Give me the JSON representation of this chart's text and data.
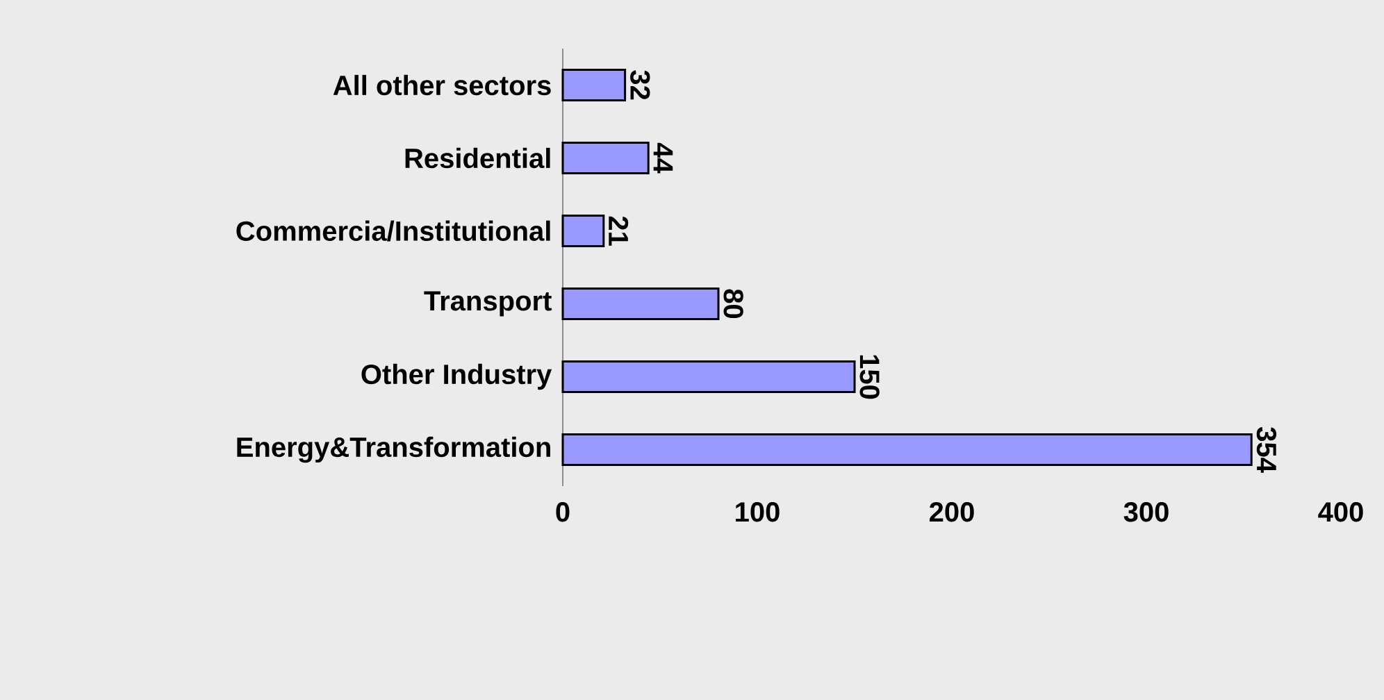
{
  "chart_data": {
    "type": "bar",
    "orientation": "horizontal",
    "categories": [
      "All other sectors",
      "Residential",
      "Commercia/Institutional",
      "Transport",
      "Other Industry",
      "Energy&Transformation"
    ],
    "values": [
      32,
      44,
      21,
      80,
      150,
      354
    ],
    "color": "#9999ff",
    "xlim": [
      0,
      400
    ],
    "xticks": [
      0,
      100,
      200,
      300,
      400
    ],
    "data_labels": true
  }
}
